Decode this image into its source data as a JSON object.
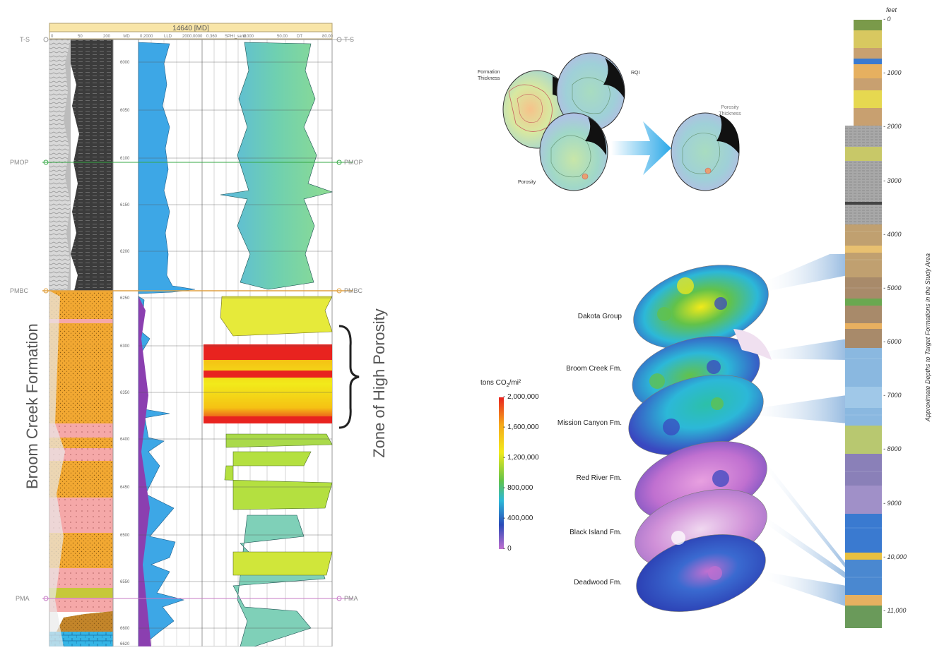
{
  "well_log": {
    "header": "14640 [MD]",
    "depth_header": "MD",
    "track_headers": [
      "0",
      "50",
      "200",
      "0.2000",
      "LLD",
      "2000.0000",
      "0.360",
      "SPHI_sand",
      "0.000",
      "50.00",
      "DT",
      "80.00"
    ],
    "depth_ticks": [
      "6000",
      "6050",
      "6100",
      "6150",
      "6200",
      "6250",
      "6300",
      "6350",
      "6400",
      "6450",
      "6500",
      "6550",
      "6600",
      "6620"
    ],
    "markers": {
      "ts": "T-S",
      "pmop": "PMOP",
      "pmbc": "PMBC",
      "pma": "PMA"
    },
    "formation_label": "Broom Creek Formation",
    "zone_label": "Zone of High Porosity"
  },
  "maps_workflow": {
    "formation_thickness": "Formation Thickness",
    "rqi": "RQI",
    "porosity": "Porosity",
    "porosity_thickness": "Porosity Thickness"
  },
  "legend": {
    "title_pre": "tons CO",
    "title_sub": "2",
    "title_post": "/mi²",
    "ticks": [
      "2,000,000",
      "1,600,000",
      "1,200,000",
      "800,000",
      "400,000",
      "0"
    ]
  },
  "formations": [
    "Dakota Group",
    "Broom Creek Fm.",
    "Mission Canyon Fm.",
    "Red River Fm.",
    "Black Island Fm.",
    "Deadwood Fm."
  ],
  "column": {
    "unit": "feet",
    "ticks": [
      "0",
      "1000",
      "2000",
      "3000",
      "4000",
      "5000",
      "6000",
      "7000",
      "8000",
      "9000",
      "10,000",
      "11,000"
    ],
    "side_label": "Approximate Depths to Target Formations in the Study Area"
  },
  "colors": {
    "sand": "#f2a832",
    "shale": "#3c3c3c",
    "resistivity": "#3da7e6",
    "accent_red": "#e8231f",
    "pmop_line": "#35a845",
    "pmbc_line": "#e0a040",
    "pma_line": "#c77ac6"
  }
}
